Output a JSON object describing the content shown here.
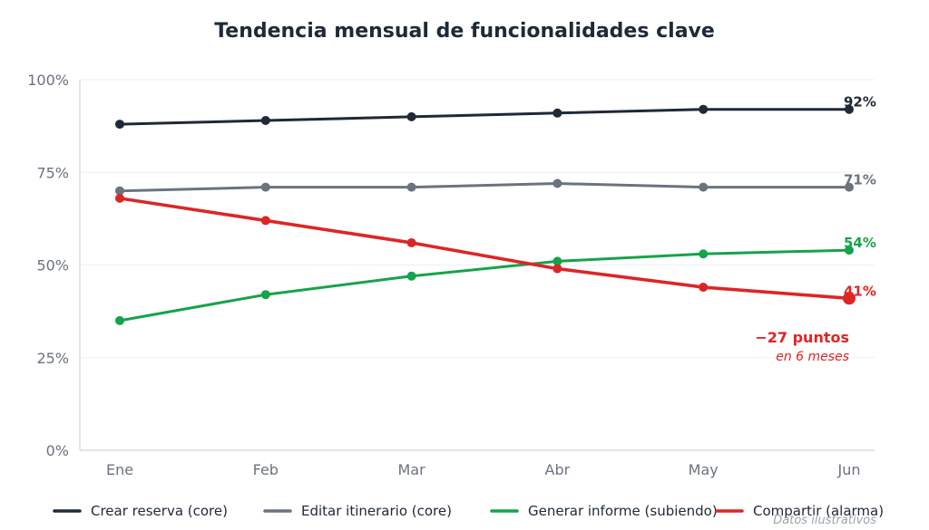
{
  "chart_data": {
    "type": "line",
    "title": "Tendencia mensual de funcionalidades clave",
    "categories": [
      "Ene",
      "Feb",
      "Mar",
      "Abr",
      "May",
      "Jun"
    ],
    "ylim": [
      0,
      100
    ],
    "yticks": [
      0,
      25,
      50,
      75,
      100
    ],
    "ytick_labels": [
      "0%",
      "25%",
      "50%",
      "75%",
      "100%"
    ],
    "grid": "horizontal",
    "legend_position": "bottom",
    "series": [
      {
        "name": "Crear reserva (core)",
        "color": "#1f2937",
        "values": [
          88,
          89,
          90,
          91,
          92,
          92
        ],
        "end_label": "92%"
      },
      {
        "name": "Editar itinerario (core)",
        "color": "#6b7280",
        "values": [
          70,
          71,
          71,
          72,
          71,
          71
        ],
        "end_label": "71%"
      },
      {
        "name": "Generar informe (subiendo)",
        "color": "#16a34a",
        "values": [
          35,
          42,
          47,
          51,
          53,
          54
        ],
        "end_label": "54%"
      },
      {
        "name": "Compartir (alarma)",
        "color": "#dc2626",
        "values": [
          68,
          62,
          56,
          49,
          44,
          41
        ],
        "end_label": "41%"
      }
    ],
    "annotation": {
      "main": "−27 puntos",
      "sub": "en 6 meses",
      "color": "#dc2626"
    },
    "footnote": "Datos ilustrativos"
  }
}
